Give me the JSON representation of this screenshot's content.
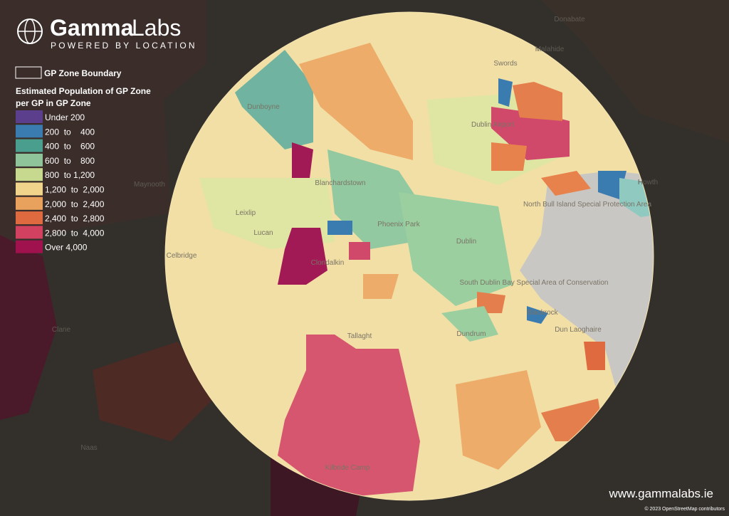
{
  "header": {
    "brand_bold": "Gamma",
    "brand_light": "Labs",
    "tagline": "POWERED BY LOCATION"
  },
  "legend": {
    "boundary_label": "GP Zone Boundary",
    "title_line1": "Estimated Population of GP Zone",
    "title_line2": "per GP in GP Zone",
    "items": [
      {
        "label": "Under 200",
        "color": "#5b3f8c"
      },
      {
        "label": "200  to    400",
        "color": "#3a7bb0"
      },
      {
        "label": "400  to    600",
        "color": "#4a9e8e"
      },
      {
        "label": "600  to    800",
        "color": "#8fc49a"
      },
      {
        "label": "800  to 1,200",
        "color": "#c6d98e"
      },
      {
        "label": "1,200  to  2,000",
        "color": "#f0d48c"
      },
      {
        "label": "2,000  to  2,400",
        "color": "#e8a25e"
      },
      {
        "label": "2,400  to  2,800",
        "color": "#e06a3f"
      },
      {
        "label": "2,800  to  4,000",
        "color": "#d2415f"
      },
      {
        "label": "Over 4,000",
        "color": "#a0124d"
      }
    ]
  },
  "places": [
    {
      "name": "Donabate"
    },
    {
      "name": "Swords"
    },
    {
      "name": "Malahide"
    },
    {
      "name": "Dunboyne"
    },
    {
      "name": "Dublin Airport"
    },
    {
      "name": "Blanchardstown"
    },
    {
      "name": "Maynooth"
    },
    {
      "name": "Leixlip"
    },
    {
      "name": "Lucan"
    },
    {
      "name": "Phoenix Park"
    },
    {
      "name": "Dublin"
    },
    {
      "name": "Celbridge"
    },
    {
      "name": "Clondalkin"
    },
    {
      "name": "Tallaght"
    },
    {
      "name": "Dundrum"
    },
    {
      "name": "Blackrock"
    },
    {
      "name": "Dun Laoghaire"
    },
    {
      "name": "Howth"
    },
    {
      "name": "North Bull Island Special Protection Area"
    },
    {
      "name": "South Dublin Bay Special Area of Conservation"
    },
    {
      "name": "Clane"
    },
    {
      "name": "Naas"
    },
    {
      "name": "Kilbride Camp"
    }
  ],
  "footer": {
    "website": "www.gammalabs.ie",
    "attribution": "© 2023 OpenStreetMap contributors"
  }
}
